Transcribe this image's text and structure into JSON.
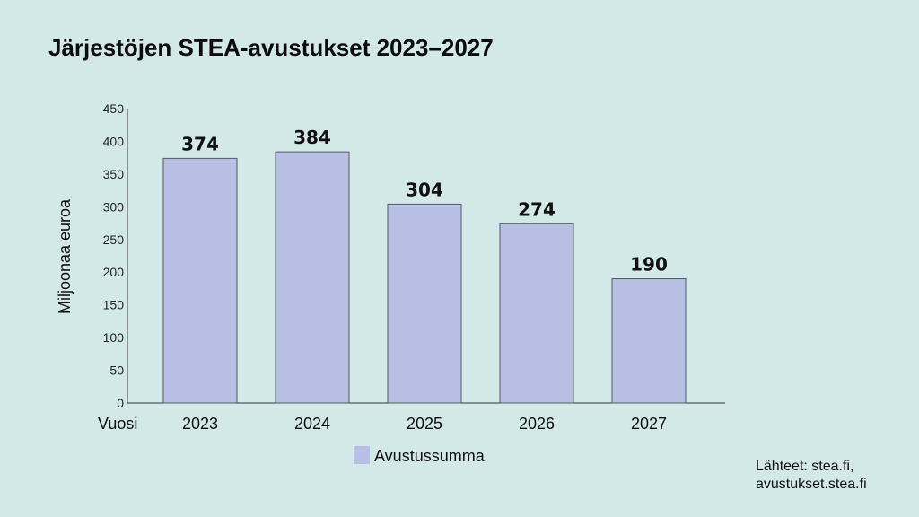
{
  "chart_data": {
    "type": "bar",
    "title": "Järjestöjen STEA-avustukset 2023–2027",
    "xlabel": "Vuosi",
    "ylabel": "Miljoonaa euroa",
    "categories": [
      "2023",
      "2024",
      "2025",
      "2026",
      "2027"
    ],
    "series": [
      {
        "name": "Avustussumma",
        "values": [
          374,
          384,
          304,
          274,
          190
        ],
        "color": "#b7bfe2"
      }
    ],
    "ylim": [
      0,
      450
    ],
    "yticks": [
      0,
      50,
      100,
      150,
      200,
      250,
      300,
      350,
      400,
      450
    ],
    "grid": false,
    "legend": "bottom-center"
  },
  "source": {
    "line1": "Lähteet: stea.fi,",
    "line2": "avustukset.stea.fi"
  },
  "colors": {
    "background": "#d3e9e8",
    "bar": "#b7bfe2",
    "bar_border": "#555a66"
  }
}
